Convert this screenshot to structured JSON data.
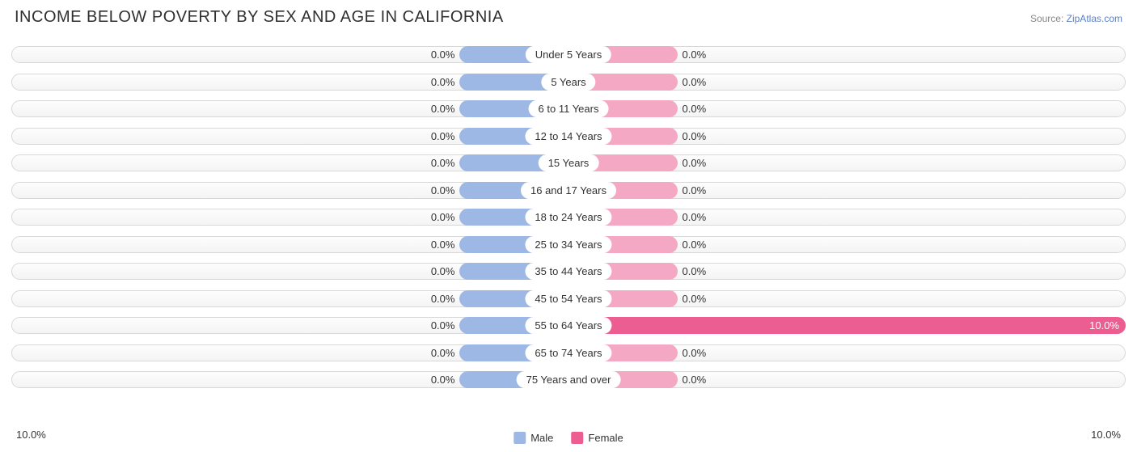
{
  "title": "INCOME BELOW POVERTY BY SEX AND AGE IN CALIFORNIA",
  "source_prefix": "Source: ",
  "source_link": "ZipAtlas.com",
  "chart": {
    "type": "diverging-bar",
    "male_color": "#9db8e4",
    "male_color_dark": "#6a8fd0",
    "female_color": "#f5a8c4",
    "female_color_dark": "#ec5e92",
    "track_border": "#d8d8d8",
    "track_bg_top": "#fdfdfd",
    "track_bg_bottom": "#f4f4f4",
    "label_bg": "#ffffff",
    "text_color": "#333333",
    "center_min_half_pct": 9.8,
    "axis_max": 10.0,
    "axis_left_label": "10.0%",
    "axis_right_label": "10.0%",
    "font_size_title": 20,
    "font_size_labels": 13,
    "rows": [
      {
        "label": "Under 5 Years",
        "male": 0.0,
        "female": 0.0,
        "male_label": "0.0%",
        "female_label": "0.0%"
      },
      {
        "label": "5 Years",
        "male": 0.0,
        "female": 0.0,
        "male_label": "0.0%",
        "female_label": "0.0%"
      },
      {
        "label": "6 to 11 Years",
        "male": 0.0,
        "female": 0.0,
        "male_label": "0.0%",
        "female_label": "0.0%"
      },
      {
        "label": "12 to 14 Years",
        "male": 0.0,
        "female": 0.0,
        "male_label": "0.0%",
        "female_label": "0.0%"
      },
      {
        "label": "15 Years",
        "male": 0.0,
        "female": 0.0,
        "male_label": "0.0%",
        "female_label": "0.0%"
      },
      {
        "label": "16 and 17 Years",
        "male": 0.0,
        "female": 0.0,
        "male_label": "0.0%",
        "female_label": "0.0%"
      },
      {
        "label": "18 to 24 Years",
        "male": 0.0,
        "female": 0.0,
        "male_label": "0.0%",
        "female_label": "0.0%"
      },
      {
        "label": "25 to 34 Years",
        "male": 0.0,
        "female": 0.0,
        "male_label": "0.0%",
        "female_label": "0.0%"
      },
      {
        "label": "35 to 44 Years",
        "male": 0.0,
        "female": 0.0,
        "male_label": "0.0%",
        "female_label": "0.0%"
      },
      {
        "label": "45 to 54 Years",
        "male": 0.0,
        "female": 0.0,
        "male_label": "0.0%",
        "female_label": "0.0%"
      },
      {
        "label": "55 to 64 Years",
        "male": 0.0,
        "female": 10.0,
        "male_label": "0.0%",
        "female_label": "10.0%"
      },
      {
        "label": "65 to 74 Years",
        "male": 0.0,
        "female": 0.0,
        "male_label": "0.0%",
        "female_label": "0.0%"
      },
      {
        "label": "75 Years and over",
        "male": 0.0,
        "female": 0.0,
        "male_label": "0.0%",
        "female_label": "0.0%"
      }
    ]
  },
  "legend": {
    "male": "Male",
    "female": "Female"
  }
}
